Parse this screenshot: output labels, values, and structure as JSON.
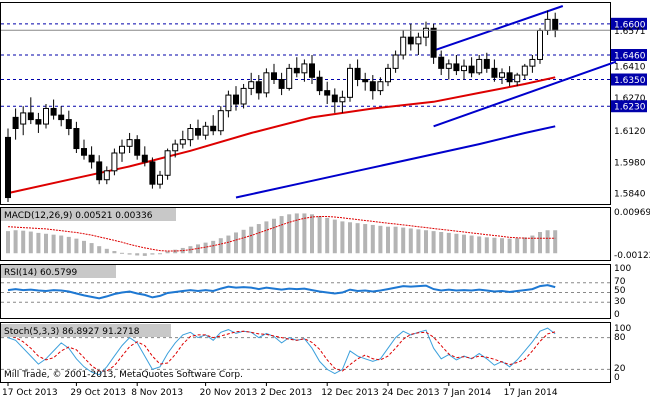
{
  "chart_data": [
    {
      "type": "candlestick",
      "title": "",
      "price_axis_labels": [
        "1.6600",
        "1.6571",
        "1.6460",
        "1.6410",
        "1.6350",
        "1.6270",
        "1.6230",
        "1.6120",
        "1.5980",
        "1.5840"
      ],
      "highlighted_levels": [
        "1.6600",
        "1.6460",
        "1.6350",
        "1.6230"
      ],
      "current_price": "1.6571",
      "ylim": [
        1.58,
        1.668
      ],
      "dashed_levels": [
        1.66,
        1.646,
        1.635,
        1.623
      ],
      "grid": false,
      "candles": [
        [
          1.609,
          1.613,
          1.58,
          1.582
        ],
        [
          1.618,
          1.622,
          1.608,
          1.613
        ],
        [
          1.615,
          1.623,
          1.61,
          1.62
        ],
        [
          1.62,
          1.627,
          1.615,
          1.617
        ],
        [
          1.617,
          1.62,
          1.611,
          1.615
        ],
        [
          1.615,
          1.624,
          1.613,
          1.622
        ],
        [
          1.622,
          1.626,
          1.617,
          1.619
        ],
        [
          1.619,
          1.623,
          1.614,
          1.617
        ],
        [
          1.617,
          1.621,
          1.61,
          1.613
        ],
        [
          1.613,
          1.616,
          1.602,
          1.604
        ],
        [
          1.604,
          1.608,
          1.599,
          1.601
        ],
        [
          1.601,
          1.605,
          1.595,
          1.598
        ],
        [
          1.598,
          1.601,
          1.588,
          1.59
        ],
        [
          1.59,
          1.596,
          1.588,
          1.594
        ],
        [
          1.594,
          1.604,
          1.592,
          1.602
        ],
        [
          1.602,
          1.608,
          1.598,
          1.605
        ],
        [
          1.605,
          1.611,
          1.602,
          1.608
        ],
        [
          1.608,
          1.61,
          1.599,
          1.601
        ],
        [
          1.601,
          1.605,
          1.596,
          1.598
        ],
        [
          1.598,
          1.6,
          1.586,
          1.588
        ],
        [
          1.588,
          1.594,
          1.586,
          1.592
        ],
        [
          1.592,
          1.604,
          1.59,
          1.603
        ],
        [
          1.603,
          1.608,
          1.6,
          1.606
        ],
        [
          1.606,
          1.612,
          1.604,
          1.608
        ],
        [
          1.608,
          1.615,
          1.605,
          1.613
        ],
        [
          1.613,
          1.617,
          1.608,
          1.61
        ],
        [
          1.61,
          1.616,
          1.608,
          1.614
        ],
        [
          1.614,
          1.619,
          1.61,
          1.612
        ],
        [
          1.612,
          1.623,
          1.61,
          1.621
        ],
        [
          1.621,
          1.63,
          1.618,
          1.628
        ],
        [
          1.628,
          1.632,
          1.621,
          1.624
        ],
        [
          1.624,
          1.633,
          1.622,
          1.631
        ],
        [
          1.631,
          1.638,
          1.628,
          1.634
        ],
        [
          1.634,
          1.637,
          1.626,
          1.629
        ],
        [
          1.629,
          1.64,
          1.627,
          1.638
        ],
        [
          1.638,
          1.642,
          1.633,
          1.635
        ],
        [
          1.635,
          1.638,
          1.628,
          1.631
        ],
        [
          1.631,
          1.642,
          1.63,
          1.64
        ],
        [
          1.64,
          1.645,
          1.636,
          1.638
        ],
        [
          1.638,
          1.644,
          1.634,
          1.642
        ],
        [
          1.642,
          1.646,
          1.633,
          1.636
        ],
        [
          1.636,
          1.639,
          1.628,
          1.63
        ],
        [
          1.63,
          1.634,
          1.624,
          1.628
        ],
        [
          1.628,
          1.631,
          1.62,
          1.625
        ],
        [
          1.625,
          1.63,
          1.62,
          1.627
        ],
        [
          1.627,
          1.642,
          1.625,
          1.64
        ],
        [
          1.64,
          1.644,
          1.632,
          1.635
        ],
        [
          1.635,
          1.638,
          1.63,
          1.634
        ],
        [
          1.634,
          1.637,
          1.626,
          1.63
        ],
        [
          1.63,
          1.636,
          1.628,
          1.634
        ],
        [
          1.634,
          1.642,
          1.632,
          1.64
        ],
        [
          1.64,
          1.648,
          1.638,
          1.646
        ],
        [
          1.646,
          1.657,
          1.644,
          1.654
        ],
        [
          1.654,
          1.66,
          1.648,
          1.651
        ],
        [
          1.651,
          1.656,
          1.646,
          1.654
        ],
        [
          1.654,
          1.661,
          1.65,
          1.658
        ],
        [
          1.658,
          1.66,
          1.642,
          1.645
        ],
        [
          1.645,
          1.648,
          1.637,
          1.64
        ],
        [
          1.64,
          1.644,
          1.635,
          1.642
        ],
        [
          1.642,
          1.646,
          1.637,
          1.639
        ],
        [
          1.639,
          1.644,
          1.635,
          1.641
        ],
        [
          1.641,
          1.645,
          1.636,
          1.638
        ],
        [
          1.638,
          1.646,
          1.637,
          1.644
        ],
        [
          1.644,
          1.647,
          1.638,
          1.64
        ],
        [
          1.64,
          1.644,
          1.634,
          1.636
        ],
        [
          1.636,
          1.64,
          1.633,
          1.638
        ],
        [
          1.638,
          1.641,
          1.632,
          1.634
        ],
        [
          1.634,
          1.638,
          1.632,
          1.637
        ],
        [
          1.637,
          1.642,
          1.635,
          1.641
        ],
        [
          1.641,
          1.646,
          1.638,
          1.644
        ],
        [
          1.644,
          1.658,
          1.642,
          1.657
        ],
        [
          1.657,
          1.666,
          1.655,
          1.662
        ],
        [
          1.662,
          1.665,
          1.654,
          1.6571
        ]
      ],
      "moving_averages": [
        {
          "color": "#dd0000",
          "points": [
            [
              0,
              1.584
            ],
            [
              8,
              1.59
            ],
            [
              16,
              1.596
            ],
            [
              24,
              1.603
            ],
            [
              32,
              1.611
            ],
            [
              40,
              1.618
            ],
            [
              48,
              1.622
            ],
            [
              56,
              1.625
            ],
            [
              62,
              1.629
            ],
            [
              68,
              1.633
            ],
            [
              72,
              1.636
            ]
          ]
        },
        {
          "color": "#0000cc",
          "points": [
            [
              30,
              1.582
            ],
            [
              38,
              1.588
            ],
            [
              46,
              1.594
            ],
            [
              54,
              1.6
            ],
            [
              62,
              1.606
            ],
            [
              68,
              1.611
            ],
            [
              72,
              1.614
            ]
          ]
        }
      ],
      "trend_lines": [
        {
          "color": "#0000cc",
          "from": [
            56,
            1.648
          ],
          "to": [
            73,
            1.668
          ]
        },
        {
          "color": "#0000cc",
          "from": [
            56,
            1.614
          ],
          "to": [
            80,
            1.643
          ]
        }
      ],
      "x_tick_labels": [
        "17 Oct 2013",
        "29 Oct 2013",
        "8 Nov 2013",
        "20 Nov 2013",
        "2 Dec 2013",
        "12 Dec 2013",
        "24 Dec 2013",
        "7 Jan 2014",
        "17 Jan 2014"
      ],
      "x_tick_index": [
        0,
        9,
        17,
        26,
        34,
        42,
        50,
        58,
        66
      ],
      "watermark": "Mill Trade, © 2001-2013, MetaQuotes Software Corp."
    },
    {
      "type": "bar",
      "title": "MACD(12,26,9) 0.00521 0.00336",
      "tick_labels": [
        "0.00969",
        "-0.00122"
      ],
      "ylim": [
        -0.0013,
        0.01
      ],
      "macd": [
        0.005,
        0.0052,
        0.0051,
        0.0049,
        0.0046,
        0.0044,
        0.0042,
        0.004,
        0.0037,
        0.0033,
        0.0028,
        0.0023,
        0.0016,
        0.001,
        0.0005,
        0.0001,
        -0.0003,
        -0.0005,
        -0.0006,
        -0.0003,
        0.0,
        0.0004,
        0.0008,
        0.0012,
        0.0016,
        0.002,
        0.0024,
        0.0028,
        0.0034,
        0.004,
        0.0047,
        0.0053,
        0.006,
        0.0066,
        0.0072,
        0.0078,
        0.0084,
        0.0088,
        0.009,
        0.009,
        0.0088,
        0.0084,
        0.008,
        0.0076,
        0.0072,
        0.007,
        0.0068,
        0.0066,
        0.0064,
        0.0062,
        0.006,
        0.006,
        0.0058,
        0.0056,
        0.0054,
        0.0052,
        0.005,
        0.0048,
        0.0046,
        0.0044,
        0.0042,
        0.004,
        0.0038,
        0.0036,
        0.0035,
        0.0034,
        0.0033,
        0.0034,
        0.0036,
        0.004,
        0.0048,
        0.0052,
        0.0052
      ],
      "signal": [
        0.006,
        0.0059,
        0.0058,
        0.0057,
        0.0056,
        0.0055,
        0.0053,
        0.0051,
        0.0049,
        0.0047,
        0.0044,
        0.0041,
        0.0037,
        0.0033,
        0.0029,
        0.0025,
        0.002,
        0.0016,
        0.0012,
        0.0009,
        0.0006,
        0.0005,
        0.0005,
        0.0006,
        0.0008,
        0.0011,
        0.0014,
        0.0017,
        0.0021,
        0.0025,
        0.003,
        0.0035,
        0.004,
        0.0046,
        0.0052,
        0.0058,
        0.0064,
        0.007,
        0.0075,
        0.0079,
        0.0082,
        0.0083,
        0.0083,
        0.0082,
        0.008,
        0.0078,
        0.0076,
        0.0074,
        0.0072,
        0.007,
        0.0068,
        0.0066,
        0.0064,
        0.0062,
        0.006,
        0.0058,
        0.0056,
        0.0054,
        0.0052,
        0.005,
        0.0048,
        0.0046,
        0.0044,
        0.0042,
        0.004,
        0.0038,
        0.0036,
        0.0035,
        0.0034,
        0.0034,
        0.0034,
        0.0034,
        0.0034
      ]
    },
    {
      "type": "line",
      "title": "RSI(14) 60.5799",
      "tick_labels": [
        "100",
        "70",
        "50",
        "30",
        "0"
      ],
      "ylim": [
        0,
        100
      ],
      "levels": [
        70,
        50,
        30
      ],
      "values": [
        55,
        57,
        55,
        56,
        54,
        53,
        55,
        54,
        52,
        48,
        44,
        41,
        38,
        42,
        47,
        50,
        52,
        48,
        45,
        40,
        43,
        49,
        51,
        53,
        55,
        53,
        55,
        53,
        58,
        62,
        60,
        61,
        60,
        57,
        60,
        58,
        56,
        58,
        57,
        58,
        55,
        52,
        50,
        48,
        50,
        56,
        53,
        54,
        52,
        54,
        57,
        60,
        63,
        62,
        63,
        64,
        57,
        54,
        56,
        54,
        55,
        54,
        56,
        54,
        52,
        53,
        51,
        53,
        55,
        57,
        63,
        65,
        61
      ]
    },
    {
      "type": "line",
      "title": "Stoch(5,3,3) 86.8927 91.2718",
      "tick_labels": [
        "100",
        "80",
        "20",
        "0"
      ],
      "ylim": [
        0,
        100
      ],
      "levels": [
        80,
        20
      ],
      "main": [
        80,
        75,
        60,
        45,
        30,
        40,
        55,
        70,
        60,
        40,
        25,
        15,
        10,
        25,
        45,
        65,
        80,
        70,
        45,
        20,
        25,
        50,
        70,
        85,
        90,
        80,
        85,
        75,
        90,
        95,
        88,
        92,
        90,
        80,
        88,
        82,
        70,
        80,
        75,
        78,
        60,
        35,
        20,
        12,
        20,
        55,
        45,
        40,
        35,
        40,
        60,
        80,
        92,
        85,
        90,
        94,
        60,
        40,
        48,
        38,
        45,
        40,
        50,
        40,
        28,
        35,
        25,
        38,
        55,
        72,
        92,
        98,
        87
      ],
      "signal": [
        85,
        80,
        72,
        60,
        45,
        38,
        42,
        55,
        62,
        57,
        42,
        27,
        17,
        17,
        27,
        45,
        63,
        72,
        65,
        45,
        30,
        32,
        48,
        68,
        82,
        85,
        85,
        80,
        83,
        87,
        91,
        92,
        90,
        87,
        86,
        83,
        80,
        77,
        75,
        78,
        71,
        58,
        38,
        22,
        17,
        29,
        40,
        47,
        40,
        38,
        45,
        60,
        77,
        86,
        89,
        90,
        81,
        65,
        49,
        42,
        44,
        41,
        45,
        43,
        39,
        34,
        29,
        33,
        39,
        55,
        73,
        87,
        91
      ]
    }
  ]
}
